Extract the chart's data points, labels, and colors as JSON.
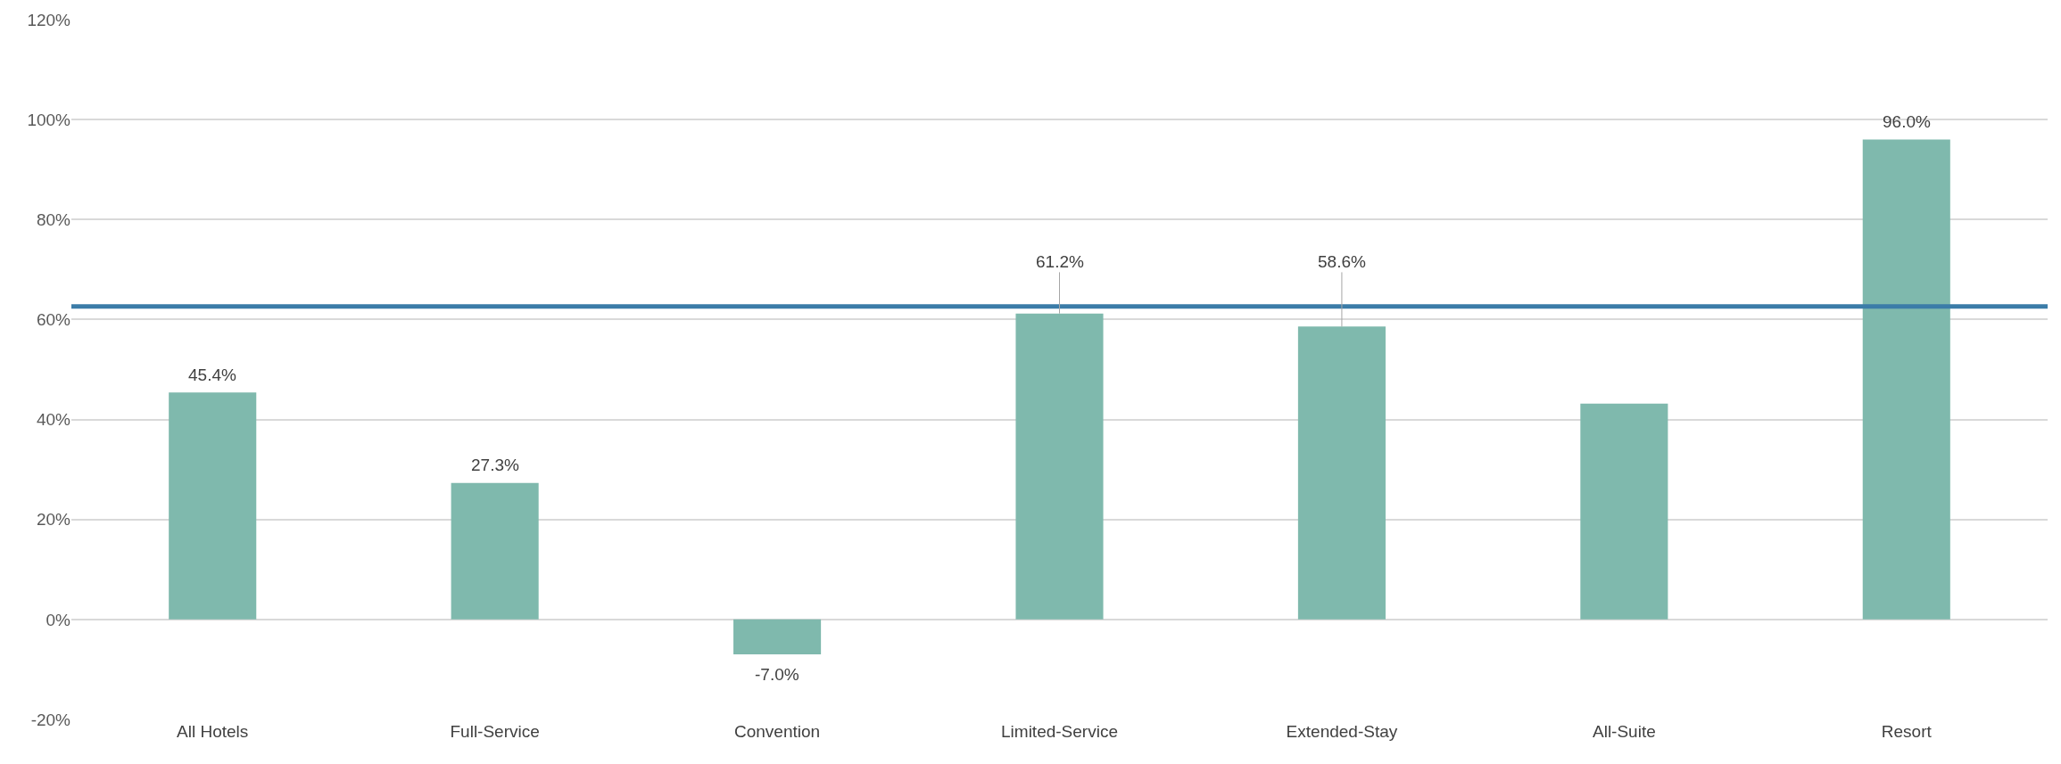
{
  "chart_data": {
    "type": "bar",
    "categories": [
      "All Hotels",
      "Full-Service",
      "Convention",
      "Limited-Service",
      "Extended-Stay",
      "All-Suite",
      "Resort"
    ],
    "values": [
      45.4,
      27.3,
      -7.0,
      61.2,
      58.6,
      43.2,
      96.0
    ],
    "value_labels": [
      "45.4%",
      "27.3%",
      "-7.0%",
      "61.2%",
      "58.6%",
      null,
      "96.0%"
    ],
    "color": "#7fb9ad",
    "ylim": [
      -20,
      120
    ],
    "yticks": [
      {
        "value": -20,
        "label": "-20%"
      },
      {
        "value": 0,
        "label": "0%"
      },
      {
        "value": 20,
        "label": "20%"
      },
      {
        "value": 40,
        "label": "40%"
      },
      {
        "value": 60,
        "label": "60%"
      },
      {
        "value": 80,
        "label": "80%"
      },
      {
        "value": 100,
        "label": "100%"
      },
      {
        "value": 120,
        "label": "120%"
      }
    ],
    "ref_lines": [
      {
        "axis": "y",
        "value": 62.6,
        "color": "#3b7ca8"
      }
    ],
    "grid": "y"
  }
}
